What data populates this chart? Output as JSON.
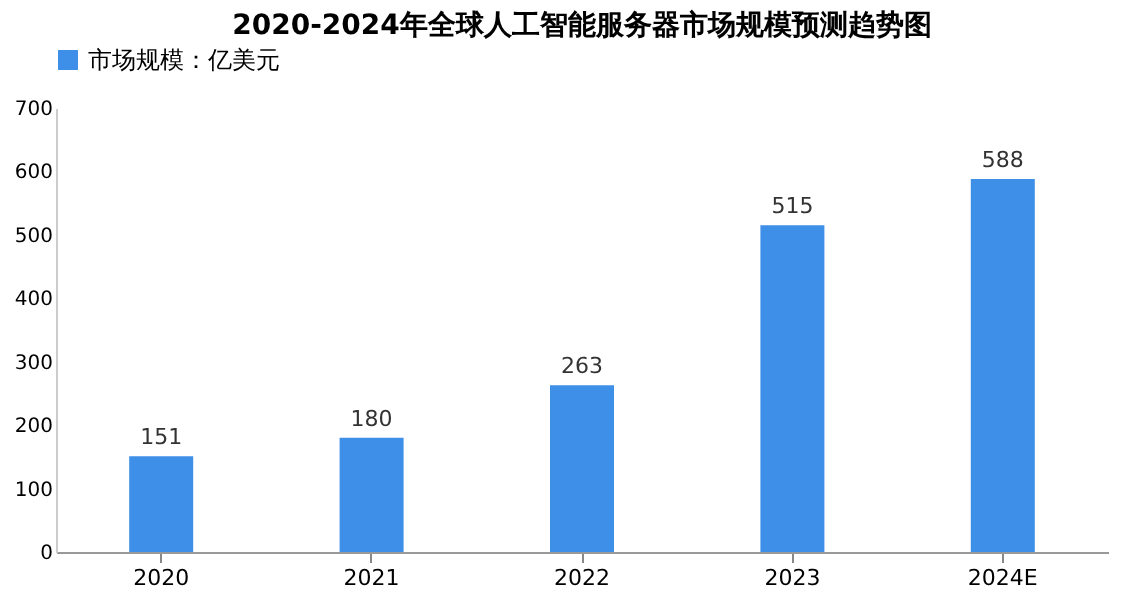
{
  "chart_data": {
    "type": "bar",
    "title": "2020-2024年全球人工智能服务器市场规模预测趋势图",
    "categories": [
      "2020",
      "2021",
      "2022",
      "2023",
      "2024E"
    ],
    "series": [
      {
        "name": "市场规模：亿美元",
        "color": "#3d8fe8",
        "values": [
          151,
          180,
          263,
          515,
          588
        ]
      }
    ],
    "ylim": [
      0,
      700
    ],
    "yticks": [
      0,
      100,
      200,
      300,
      400,
      500,
      600,
      700
    ],
    "data_labels": true,
    "grid": false,
    "legend": "top"
  }
}
